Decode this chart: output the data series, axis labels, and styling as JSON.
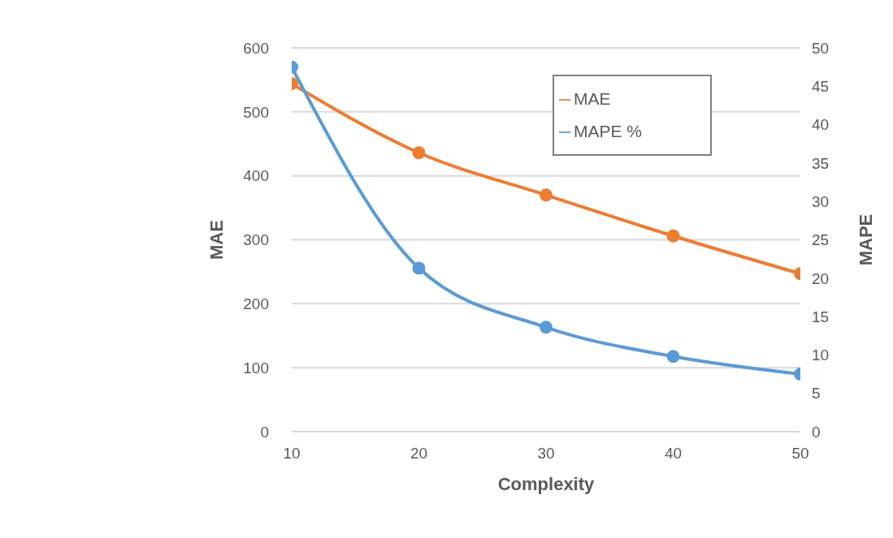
{
  "chart_data": {
    "type": "line",
    "xlabel": "Complexity",
    "ylabel": "MAE",
    "y2label": "MAPE",
    "x": [
      10,
      20,
      30,
      40,
      50
    ],
    "xlim": [
      10,
      50
    ],
    "xticks": [
      10,
      20,
      30,
      40,
      50
    ],
    "ylim": [
      0,
      600
    ],
    "yticks": [
      0,
      100,
      200,
      300,
      400,
      500,
      600
    ],
    "y2lim": [
      0,
      50
    ],
    "y2ticks": [
      0,
      5,
      10,
      15,
      20,
      25,
      30,
      35,
      40,
      45,
      50
    ],
    "series": [
      {
        "name": "MAE",
        "color": "#ed7d31",
        "values": [
          544,
          436,
          370,
          306,
          247
        ]
      },
      {
        "name": "MAPE %",
        "color": "#5b9bd5",
        "axis": "y2",
        "values": [
          47.5,
          21.3,
          13.6,
          9.8,
          7.5
        ]
      }
    ],
    "grid": "y",
    "legend": "top right",
    "marker": "circle"
  }
}
